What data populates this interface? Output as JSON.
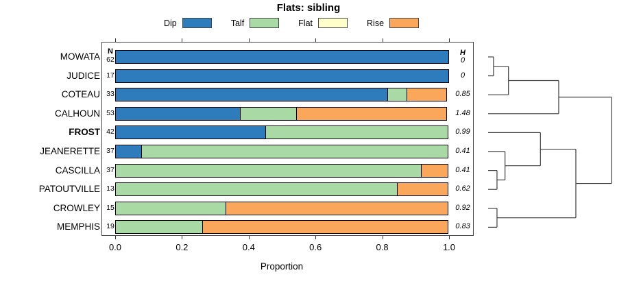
{
  "title": "Flats: sibling",
  "legend": [
    {
      "label": "Dip",
      "color": "#2E7CBB"
    },
    {
      "label": "Talf",
      "color": "#A9D9A4"
    },
    {
      "label": "Flat",
      "color": "#FFFFCC"
    },
    {
      "label": "Rise",
      "color": "#FAA65B"
    }
  ],
  "table": {
    "n_header": "N",
    "h_header": "H"
  },
  "axis": {
    "label": "Proportion",
    "ticks": [
      {
        "label": "0.0",
        "value": 0.0
      },
      {
        "label": "0.2",
        "value": 0.2
      },
      {
        "label": "0.4",
        "value": 0.4
      },
      {
        "label": "0.6",
        "value": 0.6
      },
      {
        "label": "0.8",
        "value": 0.8
      },
      {
        "label": "1.0",
        "value": 1.0
      }
    ]
  },
  "chart_data": {
    "type": "bar",
    "stacked": true,
    "orientation": "horizontal",
    "title": "Flats: sibling",
    "xlabel": "Proportion",
    "xlim": [
      0,
      1
    ],
    "series_names": [
      "Dip",
      "Talf",
      "Flat",
      "Rise"
    ],
    "series_colors": [
      "#2E7CBB",
      "#A9D9A4",
      "#FFFFCC",
      "#FAA65B"
    ],
    "rows": [
      {
        "label": "MOWATA",
        "bold": false,
        "n": 62,
        "entropy": "0",
        "values": [
          1,
          0,
          0,
          0
        ]
      },
      {
        "label": "JUDICE",
        "bold": false,
        "n": 17,
        "entropy": "0",
        "values": [
          1,
          0,
          0,
          0
        ]
      },
      {
        "label": "COTEAU",
        "bold": false,
        "n": 33,
        "entropy": "0.85",
        "values": [
          0.818,
          0.061,
          0,
          0.121
        ]
      },
      {
        "label": "CALHOUN",
        "bold": false,
        "n": 53,
        "entropy": "1.48",
        "values": [
          0.377,
          0.17,
          0,
          0.453
        ]
      },
      {
        "label": "FROST",
        "bold": true,
        "n": 42,
        "entropy": "0.99",
        "values": [
          0.452,
          0.548,
          0,
          0
        ]
      },
      {
        "label": "JEANERETTE",
        "bold": false,
        "n": 37,
        "entropy": "0.41",
        "values": [
          0.081,
          0.919,
          0,
          0
        ]
      },
      {
        "label": "CASCILLA",
        "bold": false,
        "n": 37,
        "entropy": "0.41",
        "values": [
          0,
          0.919,
          0,
          0.081
        ]
      },
      {
        "label": "PATOUTVILLE",
        "bold": false,
        "n": 13,
        "entropy": "0.62",
        "values": [
          0,
          0.846,
          0,
          0.154
        ]
      },
      {
        "label": "CROWLEY",
        "bold": false,
        "n": 15,
        "entropy": "0.92",
        "values": [
          0,
          0.333,
          0,
          0.667
        ]
      },
      {
        "label": "MEMPHIS",
        "bold": false,
        "n": 19,
        "entropy": "0.83",
        "values": [
          0,
          0.263,
          0,
          0.737
        ]
      }
    ],
    "dendrogram": {
      "leaf_order": [
        "MOWATA",
        "JUDICE",
        "COTEAU",
        "CALHOUN",
        "FROST",
        "JEANERETTE",
        "CASCILLA",
        "PATOUTVILLE",
        "CROWLEY",
        "MEMPHIS"
      ],
      "tree": {
        "height": 1.0,
        "children": [
          {
            "height": 0.572,
            "children": [
              {
                "height": 0.165,
                "children": [
                  {
                    "height": 0.044,
                    "children": [
                      {
                        "leaf": "MOWATA"
                      },
                      {
                        "leaf": "JUDICE"
                      }
                    ]
                  },
                  {
                    "leaf": "COTEAU"
                  }
                ]
              },
              {
                "leaf": "CALHOUN"
              }
            ]
          },
          {
            "height": 0.711,
            "children": [
              {
                "height": 0.424,
                "children": [
                  {
                    "leaf": "FROST"
                  },
                  {
                    "height": 0.137,
                    "children": [
                      {
                        "leaf": "JEANERETTE"
                      },
                      {
                        "height": 0.072,
                        "children": [
                          {
                            "leaf": "CASCILLA"
                          },
                          {
                            "leaf": "PATOUTVILLE"
                          }
                        ]
                      }
                    ]
                  }
                ]
              },
              {
                "height": 0.072,
                "children": [
                  {
                    "leaf": "CROWLEY"
                  },
                  {
                    "leaf": "MEMPHIS"
                  }
                ]
              }
            ]
          }
        ]
      }
    }
  }
}
